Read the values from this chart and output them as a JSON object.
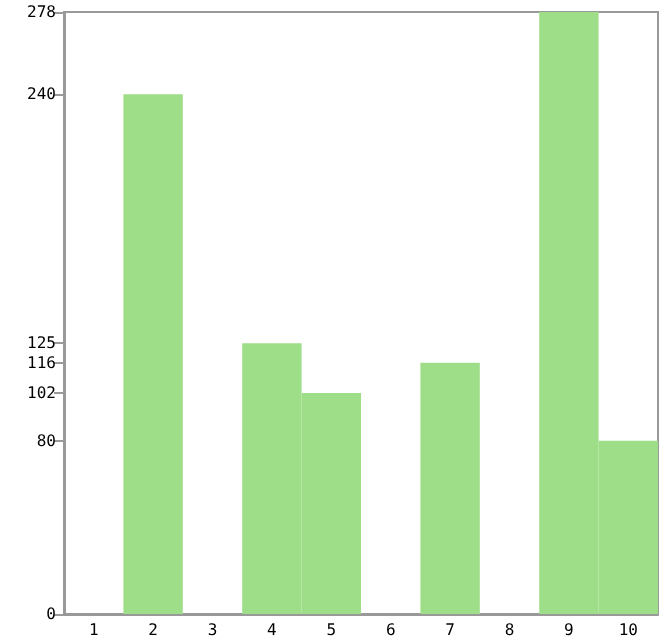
{
  "chart_data": {
    "type": "bar",
    "categories": [
      "1",
      "2",
      "3",
      "4",
      "5",
      "6",
      "7",
      "8",
      "9",
      "10"
    ],
    "values": [
      0,
      240,
      0,
      125,
      102,
      0,
      116,
      0,
      278,
      80
    ],
    "color": "#9ede88",
    "ylim": [
      0,
      278
    ],
    "yticks": [
      0,
      80,
      102,
      116,
      125,
      240,
      278
    ],
    "grid": false
  }
}
